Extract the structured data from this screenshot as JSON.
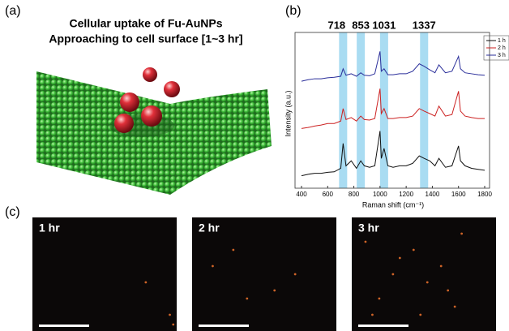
{
  "panel_a": {
    "label": "(a)",
    "title": [
      "Cellular uptake of Fu-AuNPs",
      "Approaching to cell surface [1~3 hr]"
    ]
  },
  "chart_data": {
    "type": "line",
    "label": "(b)",
    "x_label": "Raman shift (cm⁻¹)",
    "y_label": "Intensity (a.u.)",
    "x": [
      400,
      450,
      500,
      550,
      600,
      650,
      700,
      718,
      740,
      780,
      820,
      853,
      880,
      920,
      960,
      1000,
      1010,
      1031,
      1060,
      1100,
      1150,
      1200,
      1250,
      1300,
      1337,
      1380,
      1420,
      1450,
      1500,
      1550,
      1600,
      1615,
      1650,
      1700,
      1750,
      1800
    ],
    "series": [
      {
        "name": "1 h",
        "color": "#111111",
        "values": [
          0.25,
          0.28,
          0.3,
          0.3,
          0.32,
          0.33,
          0.4,
          0.9,
          0.45,
          0.55,
          0.4,
          0.55,
          0.45,
          0.42,
          0.45,
          1.15,
          0.6,
          0.8,
          0.45,
          0.42,
          0.45,
          0.45,
          0.5,
          0.65,
          0.6,
          0.55,
          0.45,
          0.6,
          0.42,
          0.45,
          0.85,
          0.55,
          0.45,
          0.4,
          0.38,
          0.36
        ]
      },
      {
        "name": "2 h",
        "color": "#cc2222",
        "values": [
          1.2,
          1.22,
          1.25,
          1.27,
          1.3,
          1.3,
          1.35,
          1.6,
          1.38,
          1.42,
          1.35,
          1.45,
          1.38,
          1.37,
          1.4,
          2.0,
          1.5,
          1.6,
          1.4,
          1.4,
          1.42,
          1.42,
          1.45,
          1.6,
          1.55,
          1.5,
          1.45,
          1.65,
          1.45,
          1.48,
          1.95,
          1.55,
          1.45,
          1.42,
          1.4,
          1.4
        ]
      },
      {
        "name": "3 h",
        "color": "#2a2e9a",
        "values": [
          2.15,
          2.18,
          2.2,
          2.2,
          2.22,
          2.23,
          2.25,
          2.4,
          2.27,
          2.3,
          2.25,
          2.32,
          2.27,
          2.26,
          2.3,
          2.75,
          2.35,
          2.4,
          2.28,
          2.28,
          2.3,
          2.3,
          2.35,
          2.5,
          2.45,
          2.38,
          2.32,
          2.48,
          2.32,
          2.35,
          2.65,
          2.4,
          2.32,
          2.3,
          2.28,
          2.27
        ]
      }
    ],
    "highlight_bands": [
      718,
      853,
      1031,
      1337
    ],
    "xlim": [
      400,
      1800
    ],
    "xticks": [
      400,
      600,
      800,
      1000,
      1200,
      1400,
      1600,
      1800
    ],
    "ylim": [
      0,
      3
    ]
  },
  "panel_c": {
    "label": "(c)",
    "images": [
      {
        "label": "1 hr"
      },
      {
        "label": "2 hr"
      },
      {
        "label": "3 hr"
      }
    ]
  }
}
